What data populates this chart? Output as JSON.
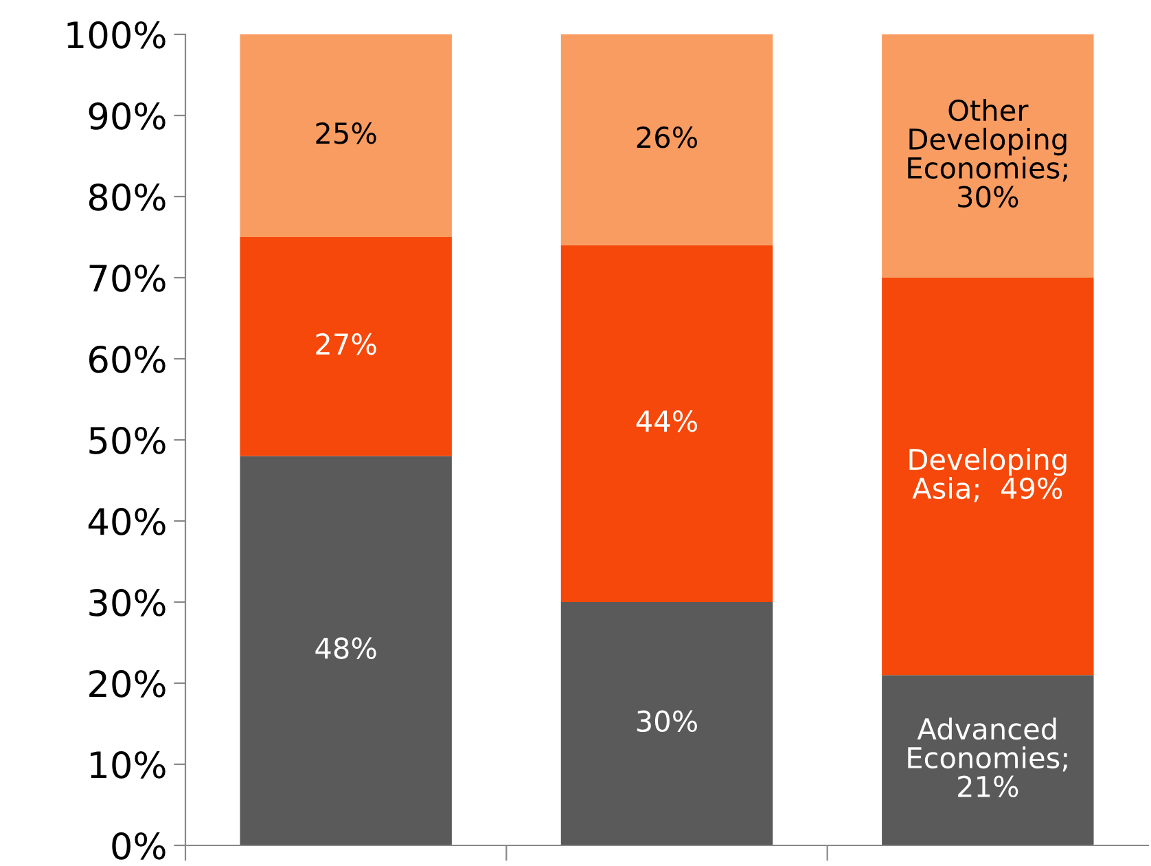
{
  "chart_data": {
    "type": "bar",
    "stacked": true,
    "categories": [
      null,
      null,
      null
    ],
    "series": [
      {
        "color": "#5a5a5a",
        "values": [
          48,
          30,
          21
        ],
        "value_labels": [
          "48%",
          "30%",
          "Advanced\nEconomies;\n21%"
        ]
      },
      {
        "color": "#f5480a",
        "values": [
          27,
          44,
          49
        ],
        "value_labels": [
          "27%",
          "44%",
          "Developing\nAsia;  49%"
        ]
      },
      {
        "color": "#f99c62",
        "values": [
          25,
          26,
          30
        ],
        "value_labels": [
          "25%",
          "26%",
          "Other\nDeveloping\nEconomies;\n30%"
        ]
      }
    ],
    "ylim": [
      0,
      100
    ],
    "yticks": [
      {
        "value": 0,
        "label": "0%"
      },
      {
        "value": 10,
        "label": "10%"
      },
      {
        "value": 20,
        "label": "20%"
      },
      {
        "value": 30,
        "label": "30%"
      },
      {
        "value": 40,
        "label": "40%"
      },
      {
        "value": 50,
        "label": "50%"
      },
      {
        "value": 60,
        "label": "60%"
      },
      {
        "value": 70,
        "label": "70%"
      },
      {
        "value": 80,
        "label": "80%"
      },
      {
        "value": 90,
        "label": "90%"
      },
      {
        "value": 100,
        "label": "100%"
      }
    ],
    "grid": false
  }
}
